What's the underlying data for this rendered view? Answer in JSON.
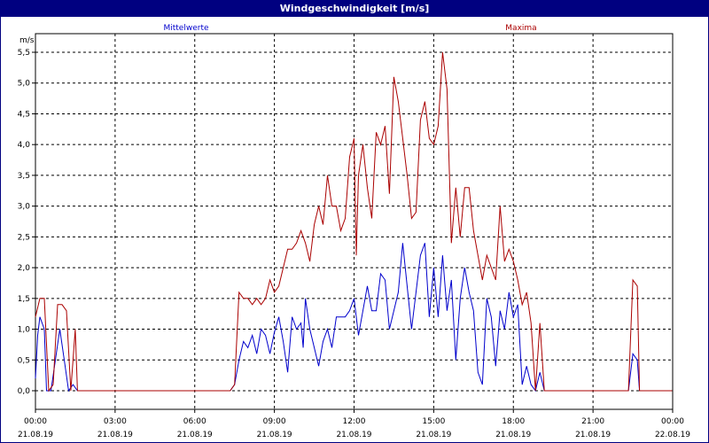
{
  "window": {
    "title": "Windgeschwindigkeit [m/s]"
  },
  "chart_data": {
    "type": "line",
    "title": "Windgeschwindigkeit [m/s]",
    "ylabel": "m/s",
    "ylim": [
      0,
      5.5
    ],
    "y_ticks": [
      "0,0",
      "0,5",
      "1,0",
      "1,5",
      "2,0",
      "2,5",
      "3,0",
      "3,5",
      "4,0",
      "4,5",
      "5,0",
      "5,5"
    ],
    "x_ticks": [
      {
        "time": "00:00",
        "date": "21.08.19"
      },
      {
        "time": "03:00",
        "date": "21.08.19"
      },
      {
        "time": "06:00",
        "date": "21.08.19"
      },
      {
        "time": "09:00",
        "date": "21.08.19"
      },
      {
        "time": "12:00",
        "date": "21.08.19"
      },
      {
        "time": "15:00",
        "date": "21.08.19"
      },
      {
        "time": "18:00",
        "date": "21.08.19"
      },
      {
        "time": "21:00",
        "date": "21.08.19"
      },
      {
        "time": "00:00",
        "date": "22.08.19"
      }
    ],
    "xlim": [
      "21.08.19 00:00",
      "22.08.19 00:00"
    ],
    "grid": true,
    "series": [
      {
        "name": "Mittelwerte",
        "color": "#0000cc",
        "points": [
          [
            "00:00",
            0.2
          ],
          [
            "00:05",
            0.9
          ],
          [
            "00:10",
            1.2
          ],
          [
            "00:20",
            1.0
          ],
          [
            "00:25",
            0.0
          ],
          [
            "00:35",
            0.0
          ],
          [
            "00:45",
            0.5
          ],
          [
            "00:55",
            1.0
          ],
          [
            "01:05",
            0.5
          ],
          [
            "01:15",
            0.0
          ],
          [
            "01:25",
            0.1
          ],
          [
            "01:35",
            0.0
          ],
          [
            "02:00",
            0.0
          ],
          [
            "07:20",
            0.0
          ],
          [
            "07:30",
            0.1
          ],
          [
            "07:40",
            0.5
          ],
          [
            "07:50",
            0.8
          ],
          [
            "08:00",
            0.7
          ],
          [
            "08:10",
            0.9
          ],
          [
            "08:20",
            0.6
          ],
          [
            "08:30",
            1.0
          ],
          [
            "08:40",
            0.9
          ],
          [
            "08:50",
            0.6
          ],
          [
            "09:00",
            0.95
          ],
          [
            "09:10",
            1.2
          ],
          [
            "09:20",
            0.8
          ],
          [
            "09:30",
            0.3
          ],
          [
            "09:40",
            1.2
          ],
          [
            "09:50",
            1.0
          ],
          [
            "10:00",
            1.1
          ],
          [
            "10:05",
            0.7
          ],
          [
            "10:10",
            1.5
          ],
          [
            "10:20",
            1.0
          ],
          [
            "10:30",
            0.7
          ],
          [
            "10:40",
            0.4
          ],
          [
            "10:50",
            0.8
          ],
          [
            "11:00",
            1.0
          ],
          [
            "11:10",
            0.7
          ],
          [
            "11:20",
            1.2
          ],
          [
            "11:30",
            1.2
          ],
          [
            "11:40",
            1.2
          ],
          [
            "11:50",
            1.3
          ],
          [
            "12:00",
            1.5
          ],
          [
            "12:10",
            0.9
          ],
          [
            "12:20",
            1.3
          ],
          [
            "12:30",
            1.7
          ],
          [
            "12:40",
            1.3
          ],
          [
            "12:50",
            1.3
          ],
          [
            "13:00",
            1.9
          ],
          [
            "13:10",
            1.8
          ],
          [
            "13:20",
            1.0
          ],
          [
            "13:30",
            1.3
          ],
          [
            "13:40",
            1.6
          ],
          [
            "13:50",
            2.4
          ],
          [
            "14:00",
            1.7
          ],
          [
            "14:10",
            1.0
          ],
          [
            "14:20",
            1.6
          ],
          [
            "14:30",
            2.2
          ],
          [
            "14:40",
            2.4
          ],
          [
            "14:50",
            1.2
          ],
          [
            "15:00",
            2.0
          ],
          [
            "15:10",
            1.2
          ],
          [
            "15:20",
            2.2
          ],
          [
            "15:30",
            1.3
          ],
          [
            "15:40",
            1.8
          ],
          [
            "15:50",
            0.5
          ],
          [
            "16:00",
            1.5
          ],
          [
            "16:10",
            2.0
          ],
          [
            "16:20",
            1.6
          ],
          [
            "16:30",
            1.3
          ],
          [
            "16:40",
            0.3
          ],
          [
            "16:50",
            0.1
          ],
          [
            "17:00",
            1.5
          ],
          [
            "17:10",
            1.2
          ],
          [
            "17:20",
            0.4
          ],
          [
            "17:30",
            1.3
          ],
          [
            "17:40",
            1.0
          ],
          [
            "17:50",
            1.6
          ],
          [
            "18:00",
            1.2
          ],
          [
            "18:10",
            1.4
          ],
          [
            "18:20",
            0.1
          ],
          [
            "18:30",
            0.4
          ],
          [
            "18:40",
            0.1
          ],
          [
            "18:50",
            0.0
          ],
          [
            "19:00",
            0.3
          ],
          [
            "19:10",
            0.0
          ],
          [
            "22:20",
            0.0
          ],
          [
            "22:30",
            0.6
          ],
          [
            "22:40",
            0.5
          ],
          [
            "22:45",
            0.0
          ],
          [
            "23:59",
            0.0
          ]
        ]
      },
      {
        "name": "Maxima",
        "color": "#aa0000",
        "points": [
          [
            "00:00",
            1.2
          ],
          [
            "00:10",
            1.5
          ],
          [
            "00:20",
            1.5
          ],
          [
            "00:30",
            0.0
          ],
          [
            "00:40",
            0.1
          ],
          [
            "00:50",
            1.4
          ],
          [
            "01:00",
            1.4
          ],
          [
            "01:10",
            1.3
          ],
          [
            "01:20",
            0.0
          ],
          [
            "01:30",
            1.0
          ],
          [
            "01:35",
            0.0
          ],
          [
            "02:00",
            0.0
          ],
          [
            "07:20",
            0.0
          ],
          [
            "07:30",
            0.1
          ],
          [
            "07:40",
            1.6
          ],
          [
            "07:50",
            1.5
          ],
          [
            "08:00",
            1.5
          ],
          [
            "08:10",
            1.4
          ],
          [
            "08:20",
            1.5
          ],
          [
            "08:30",
            1.4
          ],
          [
            "08:40",
            1.5
          ],
          [
            "08:50",
            1.8
          ],
          [
            "09:00",
            1.6
          ],
          [
            "09:10",
            1.7
          ],
          [
            "09:20",
            2.0
          ],
          [
            "09:30",
            2.3
          ],
          [
            "09:40",
            2.3
          ],
          [
            "09:50",
            2.4
          ],
          [
            "10:00",
            2.6
          ],
          [
            "10:10",
            2.4
          ],
          [
            "10:20",
            2.1
          ],
          [
            "10:30",
            2.7
          ],
          [
            "10:40",
            3.0
          ],
          [
            "10:50",
            2.7
          ],
          [
            "11:00",
            3.5
          ],
          [
            "11:10",
            3.0
          ],
          [
            "11:20",
            3.0
          ],
          [
            "11:30",
            2.6
          ],
          [
            "11:40",
            2.8
          ],
          [
            "11:50",
            3.8
          ],
          [
            "12:00",
            4.1
          ],
          [
            "12:05",
            2.2
          ],
          [
            "12:10",
            3.5
          ],
          [
            "12:20",
            4.0
          ],
          [
            "12:30",
            3.3
          ],
          [
            "12:40",
            2.8
          ],
          [
            "12:50",
            4.2
          ],
          [
            "13:00",
            4.0
          ],
          [
            "13:10",
            4.3
          ],
          [
            "13:20",
            3.2
          ],
          [
            "13:30",
            5.1
          ],
          [
            "13:40",
            4.7
          ],
          [
            "13:50",
            4.1
          ],
          [
            "14:00",
            3.5
          ],
          [
            "14:10",
            2.8
          ],
          [
            "14:20",
            2.9
          ],
          [
            "14:30",
            4.4
          ],
          [
            "14:40",
            4.7
          ],
          [
            "14:50",
            4.1
          ],
          [
            "15:00",
            4.0
          ],
          [
            "15:10",
            4.3
          ],
          [
            "15:20",
            5.5
          ],
          [
            "15:30",
            4.9
          ],
          [
            "15:40",
            2.4
          ],
          [
            "15:50",
            3.3
          ],
          [
            "16:00",
            2.5
          ],
          [
            "16:10",
            3.3
          ],
          [
            "16:20",
            3.3
          ],
          [
            "16:30",
            2.6
          ],
          [
            "16:40",
            2.2
          ],
          [
            "16:50",
            1.8
          ],
          [
            "17:00",
            2.2
          ],
          [
            "17:10",
            2.0
          ],
          [
            "17:20",
            1.8
          ],
          [
            "17:30",
            3.0
          ],
          [
            "17:40",
            2.1
          ],
          [
            "17:50",
            2.3
          ],
          [
            "18:00",
            2.1
          ],
          [
            "18:10",
            1.8
          ],
          [
            "18:20",
            1.4
          ],
          [
            "18:30",
            1.6
          ],
          [
            "18:40",
            1.1
          ],
          [
            "18:50",
            0.0
          ],
          [
            "19:00",
            1.1
          ],
          [
            "19:10",
            0.0
          ],
          [
            "22:20",
            0.0
          ],
          [
            "22:30",
            1.8
          ],
          [
            "22:40",
            1.7
          ],
          [
            "22:45",
            0.0
          ],
          [
            "23:59",
            0.0
          ]
        ]
      }
    ]
  }
}
